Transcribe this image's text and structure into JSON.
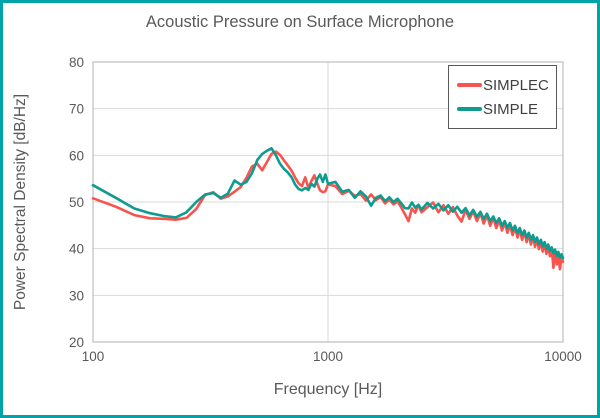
{
  "frame": {
    "border_color": "#00A3A8",
    "background": "#FFFFFF"
  },
  "chart_data": {
    "type": "line",
    "title": "Acoustic Pressure on Surface Microphone",
    "xlabel": "Frequency [Hz]",
    "ylabel": "Power Spectral Density [dB/Hz]",
    "xscale": "log",
    "xlim": [
      100,
      10000
    ],
    "ylim": [
      20,
      80
    ],
    "xticks": [
      100,
      1000,
      10000
    ],
    "yticks": [
      20,
      30,
      40,
      50,
      60,
      70,
      80
    ],
    "grid": true,
    "grid_color": "#D9D9D9",
    "axis_color": "#BFBFBF",
    "text_color": "#595959",
    "legend_position": "top-right",
    "x": [
      100,
      125,
      150,
      175,
      200,
      225,
      250,
      275,
      300,
      325,
      350,
      375,
      400,
      425,
      450,
      475,
      500,
      525,
      550,
      575,
      600,
      625,
      650,
      675,
      700,
      725,
      750,
      775,
      800,
      825,
      850,
      875,
      900,
      925,
      950,
      975,
      1000,
      1075,
      1150,
      1225,
      1300,
      1375,
      1450,
      1525,
      1600,
      1675,
      1750,
      1825,
      1900,
      1975,
      2050,
      2125,
      2200,
      2275,
      2350,
      2425,
      2500,
      2650,
      2800,
      2950,
      3100,
      3250,
      3400,
      3550,
      3700,
      3850,
      4000,
      4150,
      4300,
      4450,
      4600,
      4750,
      4900,
      5050,
      5200,
      5350,
      5500,
      5650,
      5800,
      5950,
      6100,
      6250,
      6400,
      6550,
      6700,
      6850,
      7000,
      7150,
      7300,
      7450,
      7600,
      7750,
      7900,
      8050,
      8200,
      8350,
      8500,
      8650,
      8800,
      8950,
      9100,
      9250,
      9400,
      9550,
      9700,
      9850,
      10000
    ],
    "series": [
      {
        "name": "SIMPLEC",
        "color": "#F8544E",
        "values": [
          50.8,
          49.0,
          47.2,
          46.5,
          46.4,
          46.2,
          46.6,
          48.5,
          51.5,
          52.1,
          50.7,
          51.2,
          52.2,
          53.2,
          55.2,
          57.6,
          58.2,
          56.8,
          58.6,
          60.3,
          60.8,
          60.1,
          58.9,
          57.8,
          56.7,
          55.2,
          54.0,
          53.4,
          55.3,
          53.0,
          54.5,
          55.7,
          54.0,
          52.5,
          52.1,
          52.3,
          53.8,
          53.4,
          51.7,
          52.4,
          51.3,
          51.7,
          50.3,
          51.6,
          50.4,
          51.1,
          49.7,
          50.5,
          49.5,
          50.1,
          48.8,
          47.4,
          45.9,
          48.6,
          47.7,
          49.4,
          47.8,
          48.9,
          49.9,
          47.8,
          49.3,
          47.5,
          48.9,
          47.1,
          45.8,
          48.3,
          46.4,
          48.0,
          45.9,
          47.6,
          45.4,
          47.1,
          44.9,
          46.6,
          44.4,
          46.1,
          43.9,
          45.6,
          43.4,
          45.1,
          42.9,
          44.6,
          42.4,
          44.1,
          41.9,
          43.6,
          41.4,
          43.1,
          40.9,
          42.6,
          40.4,
          42.1,
          39.9,
          41.6,
          39.4,
          41.1,
          38.9,
          40.6,
          38.4,
          40.1,
          35.9,
          39.4,
          36.6,
          38.6,
          35.6,
          38.2,
          37.2
        ]
      },
      {
        "name": "SIMPLE",
        "color": "#0E9B90",
        "values": [
          53.6,
          50.9,
          48.6,
          47.6,
          47.0,
          46.7,
          47.8,
          50.0,
          51.6,
          51.9,
          50.9,
          51.8,
          54.6,
          53.7,
          54.3,
          56.2,
          59.0,
          60.3,
          61.0,
          61.5,
          60.0,
          58.2,
          57.1,
          56.3,
          55.3,
          53.7,
          52.8,
          52.5,
          53.0,
          52.6,
          53.9,
          53.3,
          54.9,
          55.9,
          54.3,
          55.9,
          53.9,
          54.3,
          52.2,
          52.6,
          50.9,
          52.3,
          51.2,
          49.2,
          50.9,
          51.4,
          50.2,
          51.0,
          50.0,
          50.7,
          49.7,
          48.7,
          48.6,
          49.9,
          48.8,
          49.4,
          48.4,
          49.8,
          48.6,
          49.6,
          48.2,
          49.3,
          47.9,
          49.0,
          47.7,
          48.7,
          47.1,
          48.3,
          46.8,
          47.9,
          46.4,
          47.5,
          45.9,
          46.9,
          45.5,
          46.5,
          44.9,
          45.9,
          44.5,
          45.5,
          43.9,
          44.9,
          43.4,
          44.4,
          42.9,
          43.9,
          42.4,
          43.4,
          41.9,
          42.9,
          41.5,
          42.4,
          41.0,
          41.9,
          40.5,
          41.4,
          40.0,
          40.9,
          39.5,
          40.3,
          39.0,
          39.8,
          38.5,
          39.3,
          38.1,
          38.8,
          38.0
        ]
      }
    ]
  }
}
